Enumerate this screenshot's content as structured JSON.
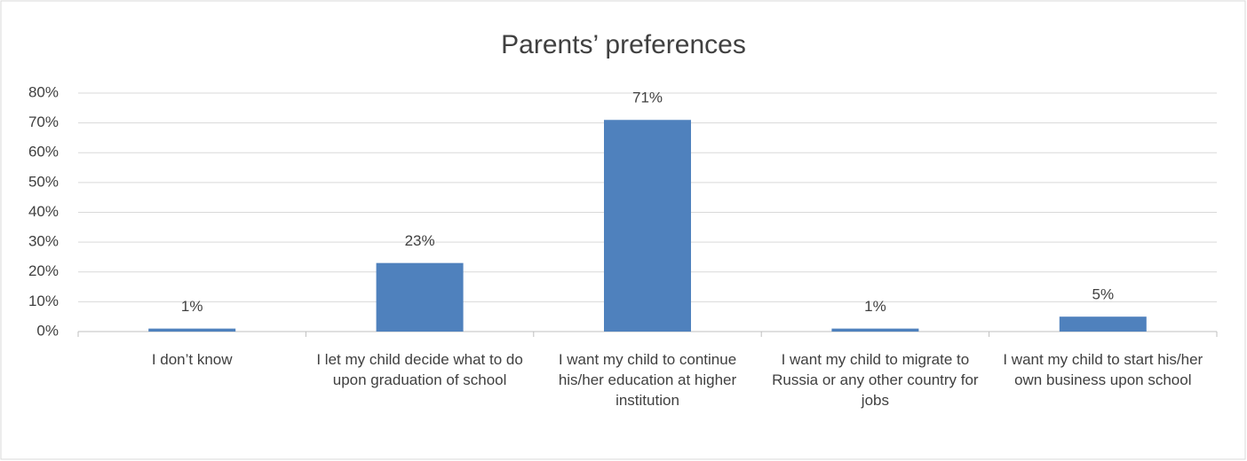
{
  "chart_data": {
    "type": "bar",
    "title": "Parents’ preferences",
    "categories": [
      "I don’t know",
      "I let my child decide what to do upon graduation of school",
      "I want my child to continue his/her education at higher institution",
      "I want my child to migrate to Russia or any other country for jobs",
      "I want my child to start his/her own business upon school"
    ],
    "values": [
      1,
      23,
      71,
      1,
      5
    ],
    "value_labels": [
      "1%",
      "23%",
      "71%",
      "1%",
      "5%"
    ],
    "color": "#4f81bd",
    "ylim": [
      0,
      80
    ],
    "yticks": [
      {
        "value": 0,
        "label": "0%"
      },
      {
        "value": 10,
        "label": "10%"
      },
      {
        "value": 20,
        "label": "20%"
      },
      {
        "value": 30,
        "label": "30%"
      },
      {
        "value": 40,
        "label": "40%"
      },
      {
        "value": 50,
        "label": "50%"
      },
      {
        "value": 60,
        "label": "60%"
      },
      {
        "value": 70,
        "label": "70%"
      },
      {
        "value": 80,
        "label": "80%"
      }
    ],
    "grid": true
  }
}
